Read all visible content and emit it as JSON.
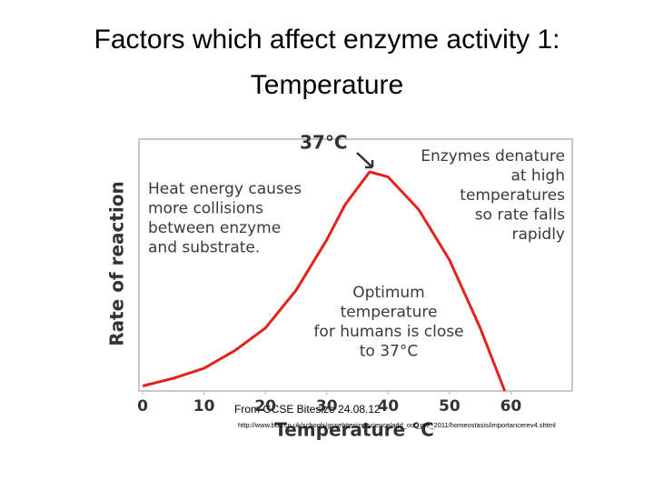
{
  "chart_data": {
    "type": "line",
    "title": [
      "Factors which affect enzyme activity 1:",
      "Temperature"
    ],
    "x_label": "Temperature °C",
    "y_label": "Rate of reaction",
    "peak_label": "37°C",
    "annotations": {
      "left": [
        "Heat energy causes",
        "more collisions",
        "between enzyme",
        "and substrate."
      ],
      "right": [
        "Enzymes denature",
        "at high",
        "temperatures",
        "so rate falls",
        "rapidly"
      ],
      "bottom": [
        "Optimum",
        "temperature",
        "for humans is close",
        "to 37°C"
      ]
    },
    "source": "From GCSE Bitesize 24.08.12",
    "url": "http://www.bbc.co.uk/schools/gcsebitesize/science/add_ocr_pre_2011/homeostasis/importancerev4.shtml",
    "x": [
      0,
      5,
      10,
      15,
      20,
      25,
      30,
      33,
      37,
      40,
      45,
      50,
      55,
      59
    ],
    "series": [
      {
        "color": "#e3221b",
        "values": [
          2,
          5,
          9,
          16,
          25,
          40,
          60,
          74,
          87,
          85,
          72,
          52,
          25,
          0
        ]
      }
    ],
    "xlim": [
      -0.6,
      70
    ],
    "ylim": [
      0,
      100
    ],
    "xticks": [
      0,
      10,
      20,
      30,
      40,
      50,
      60
    ]
  }
}
